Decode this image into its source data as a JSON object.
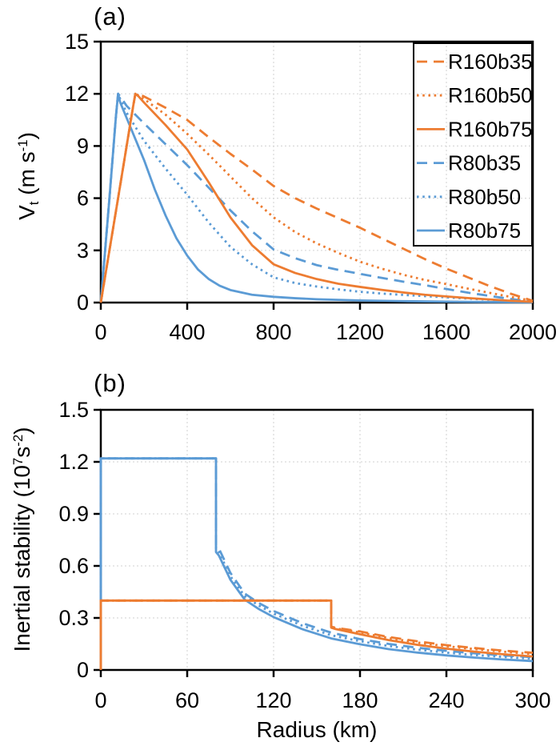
{
  "panel_a": {
    "title": "(a)",
    "ylabel_parts": {
      "pre": "V",
      "sub": "t",
      "mid": " (m s",
      "sup": "-1",
      "post": ")"
    }
  },
  "panel_b": {
    "title": "(b)",
    "ylabel_parts": {
      "pre": "Inertial stability (10",
      "sup1": "7",
      "mid": "s",
      "sup2": "-2",
      "post": ")"
    },
    "xlabel": "Radius (km)"
  },
  "colors": {
    "orange": "#ED7C31",
    "blue": "#5B9BD5",
    "grid": "#D9D9D9",
    "axis": "#000000"
  },
  "chart_data": [
    {
      "panel": "a",
      "type": "line",
      "title": "(a)",
      "xlabel": "",
      "ylabel": "Vt (m s-1)",
      "xlim": [
        0,
        2000
      ],
      "ylim": [
        0,
        15
      ],
      "xticks": [
        0,
        400,
        800,
        1200,
        1600,
        2000
      ],
      "yticks": [
        0,
        3,
        6,
        9,
        12,
        15
      ],
      "grid": true,
      "legend_position": "upper right",
      "series": [
        {
          "name": "R160b35",
          "color": "#ED7C31",
          "style": "dashed",
          "x": [
            0,
            80,
            150,
            160,
            175,
            200,
            300,
            400,
            500,
            600,
            700,
            800,
            900,
            1000,
            1100,
            1200,
            1300,
            1400,
            1500,
            1600,
            1700,
            1800,
            1900,
            2000
          ],
          "y": [
            0,
            6,
            11.3,
            12,
            11.97,
            11.85,
            11.2,
            10.5,
            9.5,
            8.55,
            7.65,
            6.7,
            6.0,
            5.4,
            4.85,
            4.3,
            3.7,
            3.1,
            2.5,
            1.95,
            1.45,
            0.95,
            0.5,
            0.1
          ]
        },
        {
          "name": "R160b50",
          "color": "#ED7C31",
          "style": "dotted",
          "x": [
            0,
            80,
            150,
            160,
            175,
            200,
            300,
            400,
            500,
            600,
            700,
            800,
            900,
            1000,
            1100,
            1200,
            1300,
            1400,
            1500,
            1600,
            1700,
            1800,
            1900,
            2000
          ],
          "y": [
            0,
            6,
            11.3,
            12,
            11.9,
            11.7,
            10.8,
            9.7,
            8.5,
            7.25,
            6.0,
            4.9,
            4.05,
            3.4,
            2.85,
            2.35,
            1.95,
            1.6,
            1.3,
            1.06,
            0.8,
            0.56,
            0.32,
            0.1
          ]
        },
        {
          "name": "R160b75",
          "color": "#ED7C31",
          "style": "solid",
          "x": [
            0,
            80,
            150,
            160,
            175,
            200,
            300,
            400,
            500,
            600,
            700,
            800,
            900,
            1000,
            1100,
            1200,
            1300,
            1400,
            1500,
            1600,
            1700,
            1800,
            1900,
            2000
          ],
          "y": [
            0,
            6,
            11.3,
            12,
            11.85,
            11.5,
            10.2,
            8.8,
            6.9,
            4.9,
            3.3,
            2.2,
            1.7,
            1.35,
            1.08,
            0.9,
            0.73,
            0.58,
            0.45,
            0.35,
            0.26,
            0.18,
            0.1,
            0.04
          ]
        },
        {
          "name": "R80b35",
          "color": "#5B9BD5",
          "style": "dashed",
          "x": [
            0,
            40,
            70,
            80,
            90,
            120,
            160,
            200,
            300,
            400,
            500,
            600,
            700,
            800,
            900,
            1000,
            1100,
            1200,
            1300,
            1400,
            1500,
            1600,
            1700,
            1800,
            1900,
            2000
          ],
          "y": [
            0,
            6,
            10.7,
            12,
            11.85,
            11.3,
            10.8,
            10.3,
            9.1,
            7.9,
            6.6,
            5.3,
            4.1,
            3.05,
            2.55,
            2.15,
            1.88,
            1.65,
            1.42,
            1.2,
            1.0,
            0.78,
            0.57,
            0.38,
            0.2,
            0.06
          ]
        },
        {
          "name": "R80b50",
          "color": "#5B9BD5",
          "style": "dotted",
          "x": [
            0,
            40,
            70,
            80,
            90,
            120,
            160,
            200,
            300,
            400,
            500,
            600,
            700,
            800,
            900,
            1000,
            1100,
            1200,
            1300,
            1400,
            1500,
            1600,
            1700,
            1800,
            1900,
            2000
          ],
          "y": [
            0,
            6,
            10.7,
            12,
            11.7,
            10.9,
            10.1,
            9.3,
            7.7,
            6.2,
            4.6,
            3.2,
            2.2,
            1.45,
            1.12,
            0.92,
            0.76,
            0.62,
            0.52,
            0.44,
            0.37,
            0.3,
            0.23,
            0.16,
            0.1,
            0.05
          ]
        },
        {
          "name": "R80b75",
          "color": "#5B9BD5",
          "style": "solid",
          "x": [
            0,
            40,
            70,
            80,
            90,
            120,
            160,
            200,
            250,
            300,
            350,
            400,
            450,
            500,
            550,
            600,
            700,
            800,
            900,
            1000,
            1200,
            1400,
            1600,
            1800,
            2000
          ],
          "y": [
            0,
            6,
            10.7,
            12,
            11.5,
            10.6,
            9.4,
            8.2,
            6.5,
            5.0,
            3.7,
            2.7,
            1.9,
            1.35,
            0.97,
            0.72,
            0.45,
            0.33,
            0.25,
            0.19,
            0.12,
            0.08,
            0.05,
            0.03,
            0.02
          ]
        }
      ]
    },
    {
      "panel": "b",
      "type": "line",
      "title": "(b)",
      "xlabel": "Radius (km)",
      "ylabel": "Inertial stability (10^7 s^-2)",
      "xlim": [
        0,
        300
      ],
      "ylim": [
        0,
        1.5
      ],
      "xticks": [
        0,
        60,
        120,
        180,
        240,
        300
      ],
      "yticks": [
        0,
        0.3,
        0.6,
        0.9,
        1.2,
        1.5
      ],
      "grid": true,
      "legend_position": "none",
      "series": [
        {
          "name": "R160b35",
          "color": "#ED7C31",
          "style": "dashed",
          "x": [
            0,
            0,
            160,
            160,
            163,
            170,
            180,
            200,
            220,
            240,
            260,
            280,
            300
          ],
          "y": [
            0,
            0.4,
            0.4,
            0.25,
            0.243,
            0.235,
            0.222,
            0.19,
            0.165,
            0.143,
            0.126,
            0.111,
            0.099
          ]
        },
        {
          "name": "R160b50",
          "color": "#ED7C31",
          "style": "dotted",
          "x": [
            0,
            0,
            160,
            160,
            163,
            170,
            180,
            200,
            220,
            240,
            260,
            280,
            300
          ],
          "y": [
            0,
            0.4,
            0.4,
            0.247,
            0.24,
            0.23,
            0.216,
            0.184,
            0.158,
            0.137,
            0.12,
            0.105,
            0.092
          ]
        },
        {
          "name": "R160b75",
          "color": "#ED7C31",
          "style": "solid",
          "x": [
            0,
            0,
            160,
            160,
            163,
            170,
            180,
            200,
            220,
            240,
            260,
            280,
            300
          ],
          "y": [
            0,
            0.4,
            0.4,
            0.244,
            0.236,
            0.224,
            0.206,
            0.172,
            0.145,
            0.123,
            0.105,
            0.09,
            0.078
          ]
        },
        {
          "name": "R80b35",
          "color": "#5B9BD5",
          "style": "dashed",
          "x": [
            0,
            0,
            80,
            80,
            82,
            90,
            100,
            110,
            120,
            140,
            160,
            180,
            200,
            220,
            240,
            260,
            280,
            300
          ],
          "y": [
            0,
            1.22,
            1.22,
            0.72,
            0.7,
            0.56,
            0.44,
            0.385,
            0.34,
            0.27,
            0.215,
            0.178,
            0.15,
            0.128,
            0.11,
            0.096,
            0.084,
            0.074
          ]
        },
        {
          "name": "R80b50",
          "color": "#5B9BD5",
          "style": "dotted",
          "x": [
            0,
            0,
            80,
            80,
            82,
            90,
            100,
            110,
            120,
            140,
            160,
            180,
            200,
            220,
            240,
            260,
            280,
            300
          ],
          "y": [
            0,
            1.22,
            1.22,
            0.7,
            0.68,
            0.54,
            0.425,
            0.37,
            0.325,
            0.255,
            0.2,
            0.166,
            0.138,
            0.117,
            0.1,
            0.086,
            0.075,
            0.065
          ]
        },
        {
          "name": "R80b75",
          "color": "#5B9BD5",
          "style": "solid",
          "x": [
            0,
            0,
            80,
            80,
            82,
            90,
            100,
            110,
            120,
            140,
            160,
            180,
            200,
            220,
            240,
            260,
            280,
            300
          ],
          "y": [
            0,
            1.22,
            1.22,
            0.68,
            0.66,
            0.52,
            0.405,
            0.35,
            0.305,
            0.235,
            0.182,
            0.148,
            0.12,
            0.1,
            0.084,
            0.071,
            0.06,
            0.051
          ]
        }
      ]
    }
  ]
}
